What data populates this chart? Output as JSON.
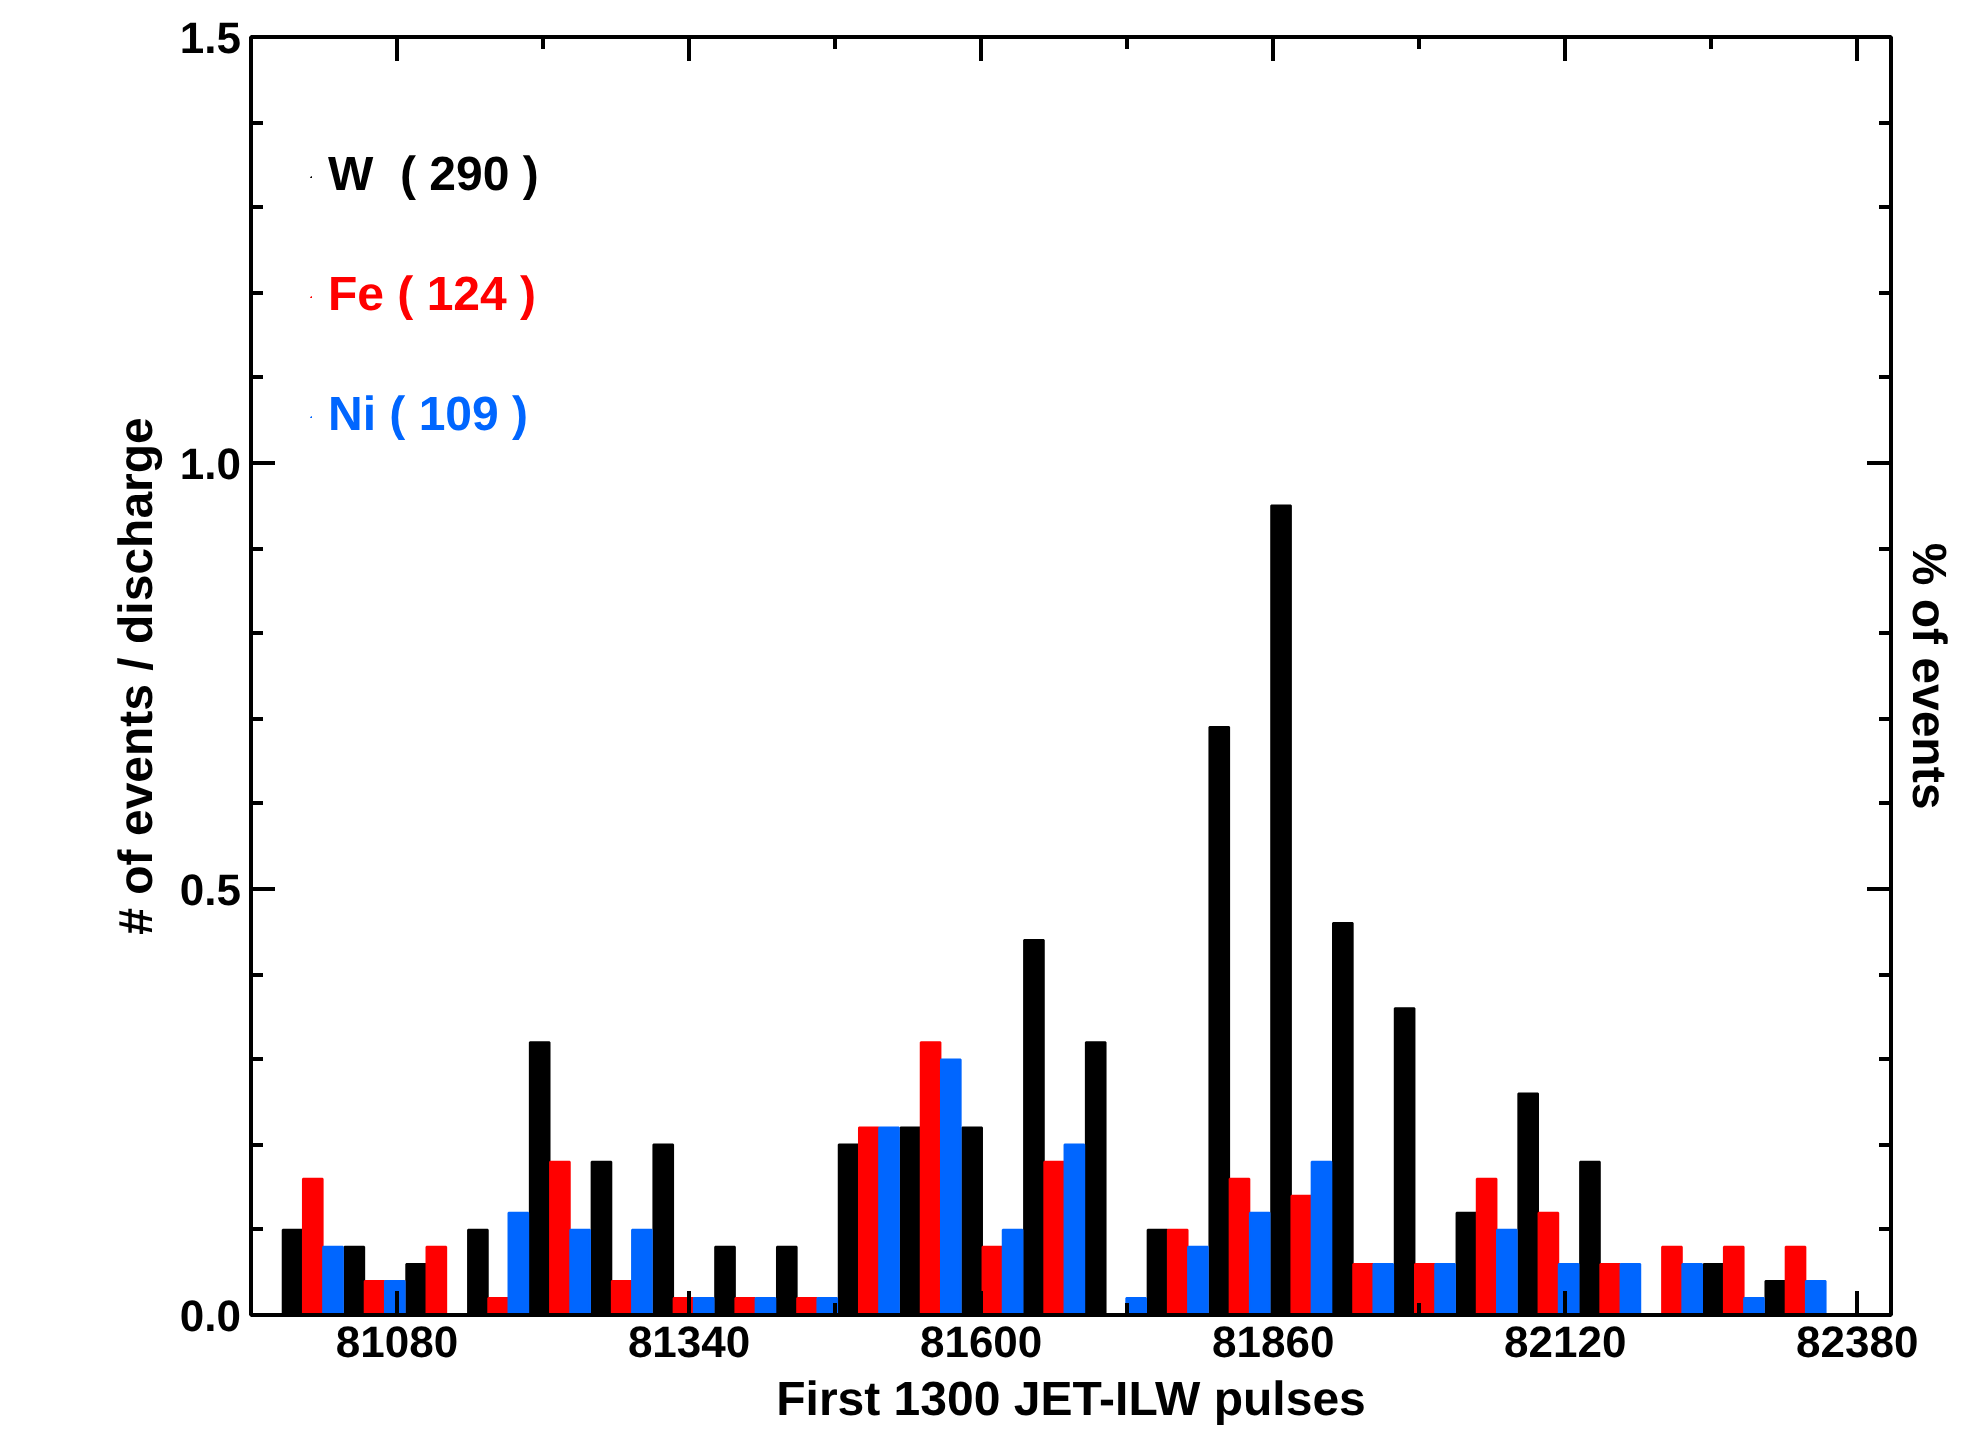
{
  "chart_data": {
    "type": "bar",
    "xlabel": "First 1300 JET-ILW pulses",
    "ylabel": "# of events / discharge",
    "y2label": "% of events",
    "x": [
      80950,
      81005,
      81060,
      81115,
      81170,
      81225,
      81280,
      81335,
      81390,
      81445,
      81500,
      81555,
      81610,
      81665,
      81720,
      81775,
      81830,
      81885,
      81940,
      81995,
      82050,
      82105,
      82160,
      82215,
      82270,
      82325,
      82380
    ],
    "series": [
      {
        "name": "W  ( 290 )",
        "color": "#000000",
        "values": [
          0,
          0.1,
          0.08,
          0.06,
          0.1,
          0.32,
          0.18,
          0.2,
          0.08,
          0.08,
          0.2,
          0.22,
          0.22,
          0.44,
          0.32,
          0.1,
          0.69,
          0.95,
          0.46,
          0.36,
          0.12,
          0.26,
          0.18,
          0,
          0.06,
          0.04,
          0
        ]
      },
      {
        "name": "Fe ( 124 )",
        "color": "#ff0000",
        "values": [
          0,
          0.16,
          0.04,
          0.08,
          0.02,
          0.18,
          0.04,
          0.02,
          0.02,
          0.02,
          0.22,
          0.32,
          0.08,
          0.18,
          0,
          0.1,
          0.16,
          0.14,
          0.06,
          0.06,
          0.16,
          0.12,
          0.06,
          0.08,
          0.08,
          0.08,
          0
        ]
      },
      {
        "name": "Ni ( 109 )",
        "color": "#0066ff",
        "values": [
          0,
          0.08,
          0.04,
          0,
          0.12,
          0.1,
          0.1,
          0.02,
          0.02,
          0.02,
          0.22,
          0.3,
          0.1,
          0.2,
          0.02,
          0.08,
          0.12,
          0.18,
          0.06,
          0.06,
          0.1,
          0.06,
          0.06,
          0.06,
          0.02,
          0.04,
          0
        ]
      }
    ],
    "xlim": [
      80950,
      82410
    ],
    "xticks": [
      81080,
      81340,
      81600,
      81860,
      82120,
      82380
    ],
    "ylim": [
      0,
      1.5
    ],
    "yticks": [
      {
        "value": 0,
        "label": "0.0"
      },
      {
        "value": 0.5,
        "label": "0.5"
      },
      {
        "value": 1.0,
        "label": "1.0"
      },
      {
        "value": 1.5,
        "label": "1.5"
      }
    ],
    "legend": "top left",
    "grid": false
  }
}
